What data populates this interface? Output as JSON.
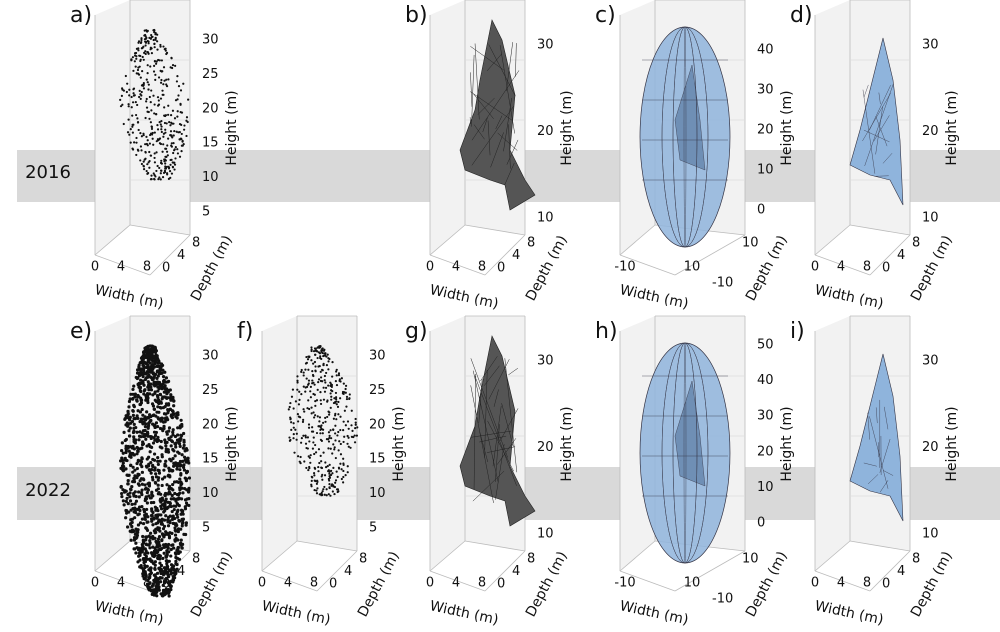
{
  "rows": [
    {
      "year": "2016"
    },
    {
      "year": "2022"
    }
  ],
  "panels": [
    {
      "label": "a)",
      "height_ticks": [
        30,
        25,
        20,
        15,
        10,
        5
      ],
      "width_ticks": [
        0,
        4,
        8
      ],
      "depth_ticks": [
        0,
        4,
        8
      ],
      "width_label": "Width (m)",
      "depth_label": "Depth (m)",
      "height_label": "Height (m)"
    },
    {
      "label": "b)",
      "height_ticks": [
        30,
        20,
        10
      ],
      "width_ticks": [
        0,
        4,
        8
      ],
      "depth_ticks": [
        0,
        4,
        8
      ],
      "width_label": "Width (m)",
      "depth_label": "Depth (m)",
      "height_label": "Height (m)"
    },
    {
      "label": "c)",
      "height_ticks": [
        40,
        30,
        20,
        10,
        0
      ],
      "width_ticks": [
        -10,
        10
      ],
      "depth_ticks": [
        -10,
        10
      ],
      "width_label": "Width (m)",
      "depth_label": "Depth (m)",
      "height_label": "Height (m)"
    },
    {
      "label": "d)",
      "height_ticks": [
        30,
        20,
        10
      ],
      "width_ticks": [
        0,
        4,
        8
      ],
      "depth_ticks": [
        0,
        4,
        8
      ],
      "width_label": "Width (m)",
      "depth_label": "Depth (m)",
      "height_label": "Height (m)"
    },
    {
      "label": "e)",
      "height_ticks": [
        30,
        25,
        20,
        15,
        10,
        5
      ],
      "width_ticks": [
        0,
        4,
        8
      ],
      "depth_ticks": [
        0,
        4,
        8
      ],
      "width_label": "Width (m)",
      "depth_label": "Depth (m)",
      "height_label": "Height (m)"
    },
    {
      "label": "f)",
      "height_ticks": [
        30,
        25,
        20,
        15,
        10,
        5
      ],
      "width_ticks": [
        0,
        4,
        8
      ],
      "depth_ticks": [
        0,
        4,
        8
      ],
      "width_label": "Width (m)",
      "depth_label": "Depth (m)",
      "height_label": "Height (m)"
    },
    {
      "label": "g)",
      "height_ticks": [
        30,
        20,
        10
      ],
      "width_ticks": [
        0,
        4,
        8
      ],
      "depth_ticks": [
        0,
        4,
        8
      ],
      "width_label": "Width (m)",
      "depth_label": "Depth (m)",
      "height_label": "Height (m)"
    },
    {
      "label": "h)",
      "height_ticks": [
        50,
        40,
        30,
        20,
        10,
        0
      ],
      "width_ticks": [
        -10,
        10
      ],
      "depth_ticks": [
        -10,
        10
      ],
      "width_label": "Width (m)",
      "depth_label": "Depth (m)",
      "height_label": "Height (m)"
    },
    {
      "label": "i)",
      "height_ticks": [
        30,
        20,
        10
      ],
      "width_ticks": [
        0,
        4,
        8
      ],
      "depth_ticks": [
        0,
        4,
        8
      ],
      "width_label": "Width (m)",
      "depth_label": "Depth (m)",
      "height_label": "Height (m)"
    }
  ]
}
